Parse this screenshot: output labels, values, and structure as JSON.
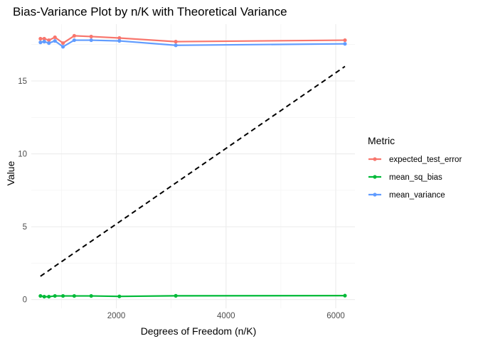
{
  "chart_data": {
    "type": "line",
    "title": "Bias-Variance Plot by n/K with Theoretical Variance",
    "xlabel": "Degrees of Freedom (n/K)",
    "ylabel": "Value",
    "xlim": [
      450,
      6350
    ],
    "ylim": [
      -0.6,
      18.9
    ],
    "x_ticks": [
      2000,
      4000,
      6000
    ],
    "x_tick_labels": [
      "2000",
      "4000",
      "6000"
    ],
    "y_ticks": [
      0,
      5,
      10,
      15
    ],
    "y_tick_labels": [
      "0",
      "5",
      "10",
      "15"
    ],
    "grid": true,
    "legend_title": "Metric",
    "legend_position": "right",
    "x": [
      617,
      686,
      771,
      881,
      1028,
      1233,
      1542,
      2056,
      3084,
      6168
    ],
    "series": [
      {
        "name": "expected_test_error",
        "color": "#F8766D",
        "values": [
          17.9,
          17.9,
          17.8,
          18.0,
          17.6,
          18.1,
          18.05,
          17.95,
          17.7,
          17.8
        ]
      },
      {
        "name": "mean_sq_bias",
        "color": "#00BA38",
        "values": [
          0.25,
          0.2,
          0.2,
          0.25,
          0.25,
          0.25,
          0.25,
          0.22,
          0.26,
          0.27
        ]
      },
      {
        "name": "mean_variance",
        "color": "#619CFF",
        "values": [
          17.65,
          17.7,
          17.6,
          17.75,
          17.35,
          17.8,
          17.8,
          17.75,
          17.45,
          17.55
        ]
      }
    ],
    "theoretical": {
      "style": "dashed",
      "color": "#000000",
      "values": [
        1.6,
        1.78,
        2.0,
        2.29,
        2.67,
        3.2,
        4.0,
        5.33,
        8.0,
        16.0
      ]
    }
  }
}
